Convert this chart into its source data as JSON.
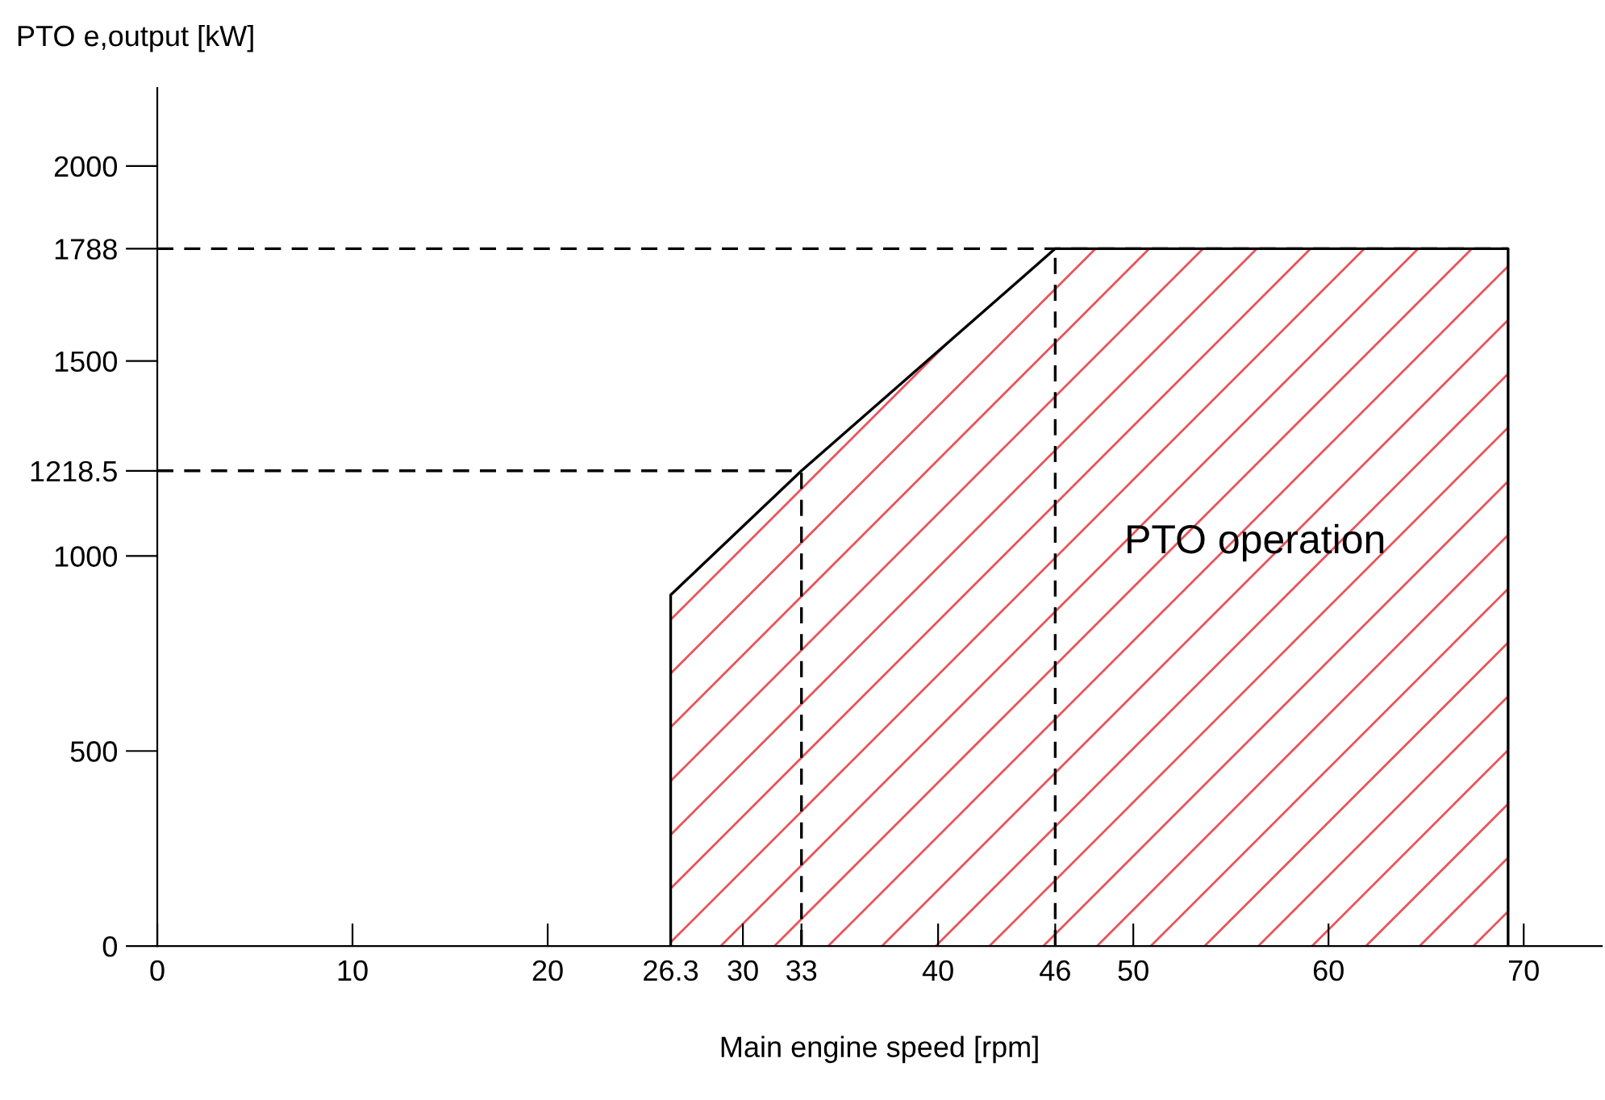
{
  "chart_data": {
    "type": "area",
    "xlabel": "Main engine speed [rpm]",
    "ylabel": "PTO e,output [kW]",
    "xlim": [
      0,
      74
    ],
    "ylim": [
      0,
      2200
    ],
    "xticks": [
      0,
      10,
      20,
      26.3,
      30,
      33,
      40,
      46,
      50,
      60,
      70
    ],
    "yticks": [
      0,
      500,
      1000,
      1218.5,
      1500,
      1788,
      2000
    ],
    "series": [
      {
        "color": "#e8545a",
        "x": [
          26.3,
          33,
          46,
          69.2
        ],
        "values": [
          900,
          1218.5,
          1788,
          1788
        ]
      }
    ],
    "ref_lines": [
      {
        "axis": "y",
        "value": 1788,
        "line_style": "dashed"
      },
      {
        "axis": "y",
        "value": 1218.5,
        "line_style": "dashed"
      },
      {
        "axis": "x",
        "value": 33,
        "line_style": "dashed"
      },
      {
        "axis": "x",
        "value": 46,
        "line_style": "dashed"
      }
    ],
    "annotations": [
      "PTO operation"
    ],
    "grid": false,
    "legend": false
  }
}
